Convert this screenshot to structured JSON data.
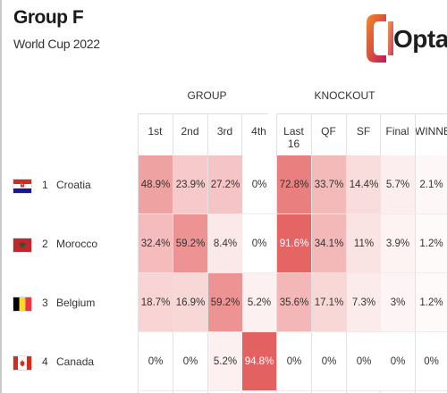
{
  "header": {
    "title": "Group F",
    "subtitle": "World Cup 2022",
    "logo_text": "Opta"
  },
  "columns": {
    "group_label": "GROUP",
    "knockout_label": "KNOCKOUT",
    "names": [
      "1st",
      "2nd",
      "3rd",
      "4th",
      "Last 16",
      "QF",
      "SF",
      "Final",
      "WINNER"
    ]
  },
  "teams": [
    {
      "rank": "1",
      "name": "Croatia",
      "flag_icon": "croatia-flag-icon",
      "values": [
        "48.9%",
        "23.9%",
        "27.2%",
        "0%",
        "72.8%",
        "33.7%",
        "14.4%",
        "5.7%",
        "2.1%"
      ],
      "shares": [
        48.9,
        23.9,
        27.2,
        0,
        72.8,
        33.7,
        14.4,
        5.7,
        2.1
      ]
    },
    {
      "rank": "2",
      "name": "Morocco",
      "flag_icon": "morocco-flag-icon",
      "values": [
        "32.4%",
        "59.2%",
        "8.4%",
        "0%",
        "91.6%",
        "34.1%",
        "11%",
        "3.9%",
        "1.2%"
      ],
      "shares": [
        32.4,
        59.2,
        8.4,
        0,
        91.6,
        34.1,
        11,
        3.9,
        1.2
      ]
    },
    {
      "rank": "3",
      "name": "Belgium",
      "flag_icon": "belgium-flag-icon",
      "values": [
        "18.7%",
        "16.9%",
        "59.2%",
        "5.2%",
        "35.6%",
        "17.1%",
        "7.3%",
        "3%",
        "1.2%"
      ],
      "shares": [
        18.7,
        16.9,
        59.2,
        5.2,
        35.6,
        17.1,
        7.3,
        3,
        1.2
      ]
    },
    {
      "rank": "4",
      "name": "Canada",
      "flag_icon": "canada-flag-icon",
      "values": [
        "0%",
        "0%",
        "5.2%",
        "94.8%",
        "0%",
        "0%",
        "0%",
        "0%",
        "0%"
      ],
      "shares": [
        0,
        0,
        5.2,
        94.8,
        0,
        0,
        0,
        0,
        0
      ]
    }
  ],
  "colors": {
    "heat_base": "#ffffff",
    "heat_max": "#e35a5a",
    "text_dark": "#333333",
    "text_light": "#ffffff",
    "logo_orange": "#f08a24",
    "logo_magenta": "#c2185b"
  }
}
